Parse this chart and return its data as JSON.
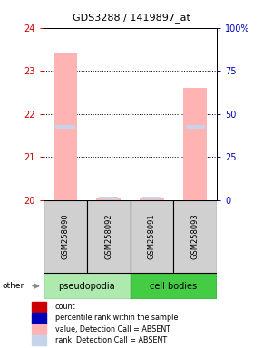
{
  "title": "GDS3288 / 1419897_at",
  "samples": [
    "GSM258090",
    "GSM258092",
    "GSM258091",
    "GSM258093"
  ],
  "ylim_left": [
    20,
    24
  ],
  "ylim_right": [
    0,
    100
  ],
  "yticks_left": [
    20,
    21,
    22,
    23,
    24
  ],
  "yticks_right": [
    0,
    25,
    50,
    75,
    100
  ],
  "bar_values": [
    23.4,
    20.05,
    20.05,
    22.6
  ],
  "rank_values": [
    21.7,
    20.05,
    20.05,
    21.7
  ],
  "bar_color_absent": "#ffb3b3",
  "rank_color_absent": "#c5d4ea",
  "legend_items": [
    {
      "label": "count",
      "color": "#cc0000"
    },
    {
      "label": "percentile rank within the sample",
      "color": "#0000bb"
    },
    {
      "label": "value, Detection Call = ABSENT",
      "color": "#ffb3b3"
    },
    {
      "label": "rank, Detection Call = ABSENT",
      "color": "#c5d4ea"
    }
  ],
  "background_color": "#ffffff",
  "axis_color_left": "#cc0000",
  "axis_color_right": "#0000bb",
  "pseudopodia_color": "#aeeaae",
  "cell_bodies_color": "#44cc44",
  "sample_box_color": "#d0d0d0",
  "bar_width": 0.55,
  "rank_bar_width": 0.45,
  "rank_bar_height": 0.07
}
